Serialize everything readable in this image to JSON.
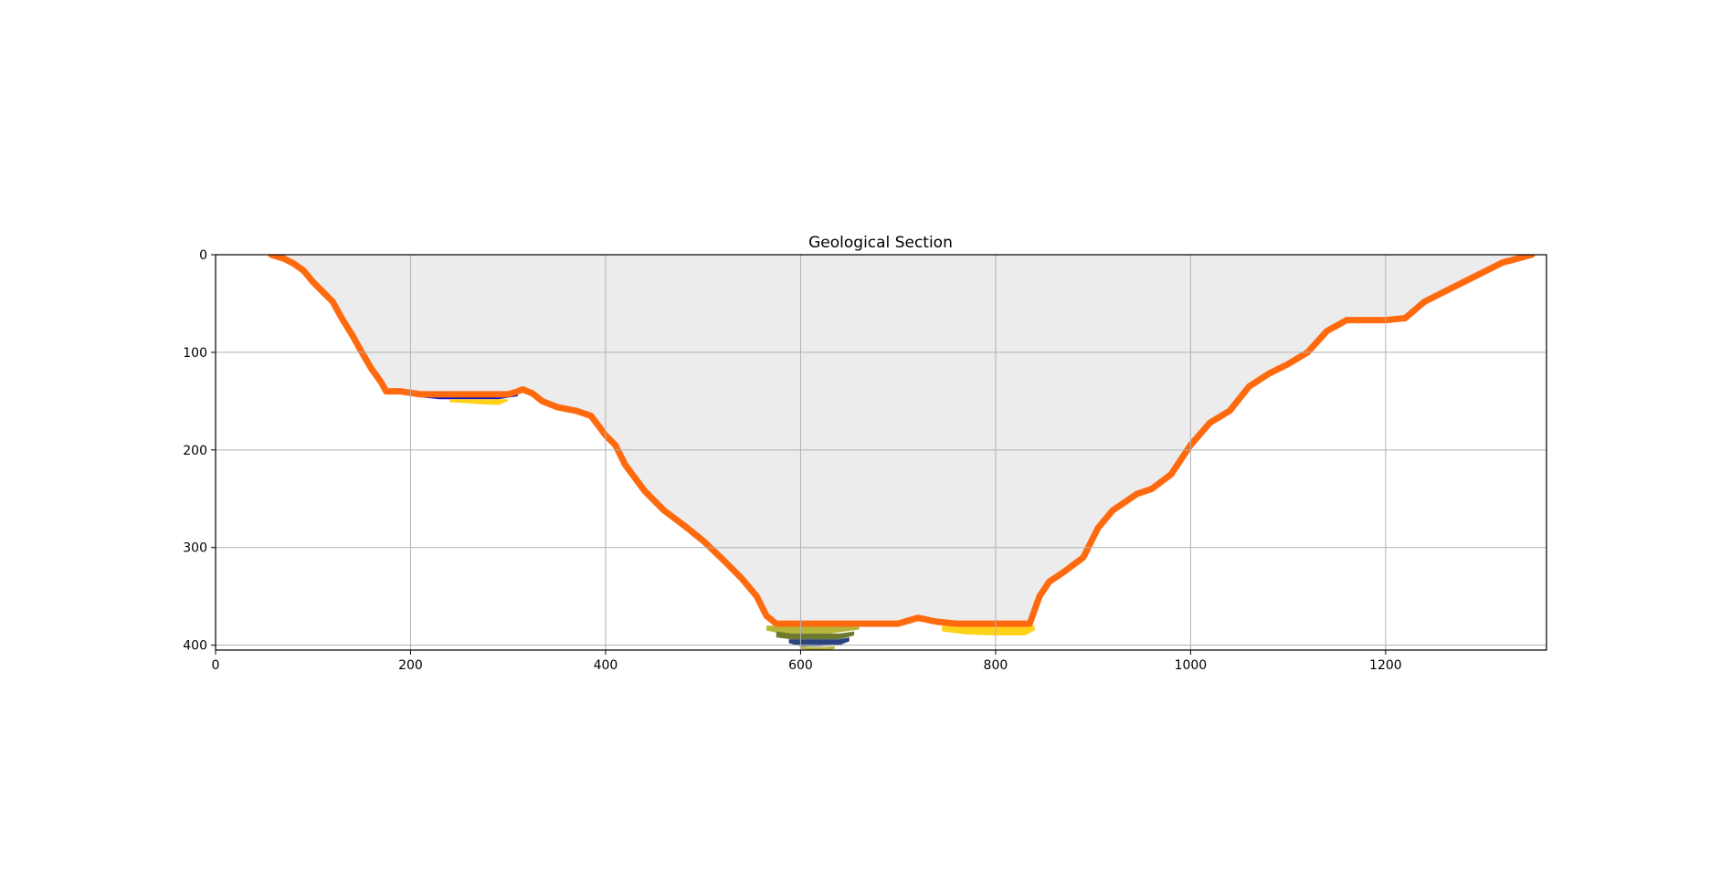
{
  "chart_data": {
    "type": "area",
    "title": "Geological Section",
    "xlabel": "",
    "ylabel": "",
    "xlim": [
      0,
      1365
    ],
    "ylim": [
      405,
      0
    ],
    "x_ticks": [
      0,
      200,
      400,
      600,
      800,
      1000,
      1200
    ],
    "y_ticks": [
      0,
      100,
      200,
      300,
      400
    ],
    "x_tick_labels": [
      "0",
      "200",
      "400",
      "600",
      "800",
      "1000",
      "1200"
    ],
    "y_tick_labels": [
      "0",
      "100",
      "200",
      "300",
      "400"
    ],
    "grid": true,
    "legend": "none",
    "colors": {
      "void_fill": "#ececec",
      "surface_layer": "#ff6a0e",
      "blue_layer": "#1a10c8",
      "yellow_layer": "#ffd21a",
      "olive_layer": "#b5b53a",
      "dark_olive_layer": "#707a2e",
      "navy_layer": "#2a4480",
      "grid": "#b0b0b0",
      "axes": "#000000"
    },
    "surface_profile": {
      "x": [
        57,
        70,
        80,
        90,
        100,
        110,
        120,
        130,
        140,
        150,
        160,
        170,
        175,
        180,
        190,
        210,
        240,
        270,
        300,
        310,
        315,
        325,
        335,
        350,
        370,
        385,
        400,
        410,
        420,
        440,
        460,
        480,
        500,
        520,
        540,
        555,
        565,
        575,
        600,
        660,
        700,
        720,
        740,
        760,
        780,
        820,
        835,
        845,
        855,
        870,
        890,
        905,
        920,
        945,
        960,
        980,
        1000,
        1020,
        1040,
        1060,
        1080,
        1100,
        1120,
        1140,
        1160,
        1180,
        1200,
        1220,
        1240,
        1260,
        1280,
        1300,
        1320,
        1350
      ],
      "depth": [
        0,
        4,
        9,
        16,
        28,
        38,
        48,
        66,
        82,
        100,
        117,
        131,
        140,
        140,
        140,
        143,
        143,
        143,
        143,
        140,
        138,
        142,
        150,
        156,
        160,
        165,
        185,
        195,
        215,
        242,
        262,
        277,
        293,
        312,
        332,
        350,
        370,
        378,
        378,
        378,
        378,
        372,
        376,
        378,
        378,
        378,
        378,
        350,
        335,
        325,
        310,
        280,
        262,
        245,
        240,
        225,
        195,
        172,
        160,
        135,
        122,
        112,
        100,
        78,
        67,
        67,
        67,
        65,
        48,
        38,
        28,
        18,
        8,
        0
      ]
    },
    "layers": [
      {
        "color": "#1a10c8",
        "x": [
          210,
          230,
          260,
          290,
          310
        ],
        "top": [
          143,
          144,
          144,
          144,
          143
        ],
        "bottom": [
          146,
          148,
          148,
          148,
          145
        ]
      },
      {
        "color": "#ffd21a",
        "x": [
          240,
          255,
          270,
          290,
          300
        ],
        "top": [
          148,
          148,
          148,
          148,
          148
        ],
        "bottom": [
          151,
          152,
          153,
          154,
          150
        ]
      },
      {
        "color": "#b5b53a",
        "x": [
          565,
          580,
          600,
          630,
          660
        ],
        "top": [
          380,
          380,
          380,
          380,
          380
        ],
        "bottom": [
          385,
          388,
          388,
          388,
          384
        ]
      },
      {
        "color": "#707a2e",
        "x": [
          575,
          590,
          610,
          640,
          655
        ],
        "top": [
          386,
          388,
          388,
          388,
          386
        ],
        "bottom": [
          392,
          394,
          394,
          394,
          390
        ]
      },
      {
        "color": "#2a4480",
        "x": [
          588,
          600,
          620,
          640,
          650
        ],
        "top": [
          394,
          394,
          394,
          394,
          392
        ],
        "bottom": [
          398,
          401,
          401,
          400,
          396
        ]
      },
      {
        "color": "#b5b53a",
        "x": [
          600,
          610,
          625,
          635
        ],
        "top": [
          401,
          402,
          402,
          401
        ],
        "bottom": [
          404,
          405,
          405,
          404
        ]
      },
      {
        "color": "#ffd21a",
        "x": [
          745,
          770,
          800,
          830,
          840
        ],
        "top": [
          380,
          380,
          380,
          380,
          380
        ],
        "bottom": [
          386,
          389,
          390,
          390,
          385
        ]
      }
    ]
  }
}
